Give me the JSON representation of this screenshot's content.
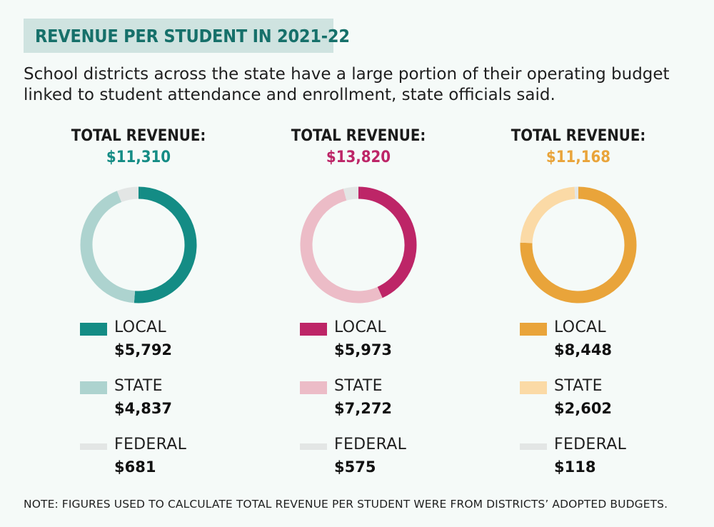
{
  "title": "REVENUE PER STUDENT IN 2021-22",
  "subtitle": "School districts across the state have a large portion of their operating budget linked to student attendance and enrollment, state officials said.",
  "note": "NOTE: FIGURES USED TO CALCULATE TOTAL REVENUE PER STUDENT WERE FROM DISTRICTS’ ADOPTED BUDGETS.",
  "chart_data": [
    {
      "type": "pie",
      "title": "TOTAL REVENUE:",
      "total_label": "$11,310",
      "total": 11310,
      "accent": "#148c85",
      "categories": [
        "LOCAL",
        "STATE",
        "FEDERAL"
      ],
      "values": [
        5792,
        4837,
        681
      ],
      "value_labels": [
        "$5,792",
        "$4,837",
        "$681"
      ],
      "colors": [
        "#148c85",
        "#add3cf",
        "#e3e6e5"
      ]
    },
    {
      "type": "pie",
      "title": "TOTAL REVENUE:",
      "total_label": "$13,820",
      "total": 13820,
      "accent": "#bd2567",
      "categories": [
        "LOCAL",
        "STATE",
        "FEDERAL"
      ],
      "values": [
        5973,
        7272,
        575
      ],
      "value_labels": [
        "$5,973",
        "$7,272",
        "$575"
      ],
      "colors": [
        "#bd2567",
        "#ecbcc7",
        "#e3e6e5"
      ]
    },
    {
      "type": "pie",
      "title": "TOTAL REVENUE:",
      "total_label": "$11,168",
      "total": 11168,
      "accent": "#e9a43a",
      "categories": [
        "LOCAL",
        "STATE",
        "FEDERAL"
      ],
      "values": [
        8448,
        2602,
        118
      ],
      "value_labels": [
        "$8,448",
        "$2,602",
        "$118"
      ],
      "colors": [
        "#e9a43a",
        "#fbdaa6",
        "#e3e6e5"
      ]
    }
  ]
}
